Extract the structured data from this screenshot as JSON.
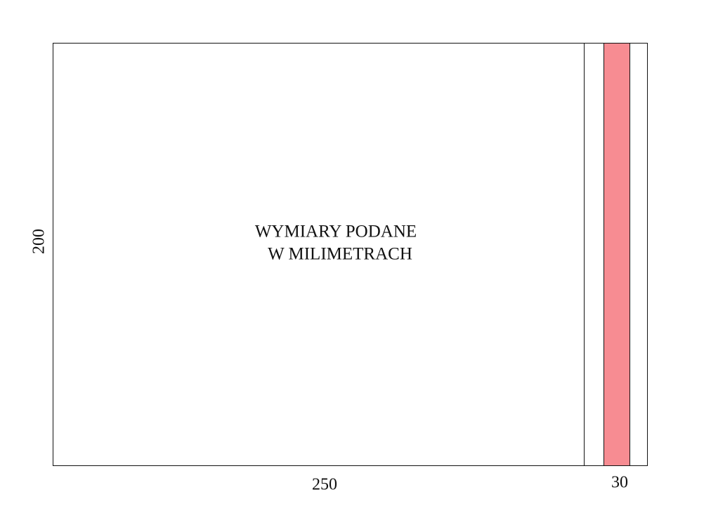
{
  "dimensions": {
    "height": "200",
    "width": "250",
    "strip_width": "30"
  },
  "note": {
    "lines": [
      "WYMIARY PODANE",
      "W MILIMETRACH"
    ]
  }
}
